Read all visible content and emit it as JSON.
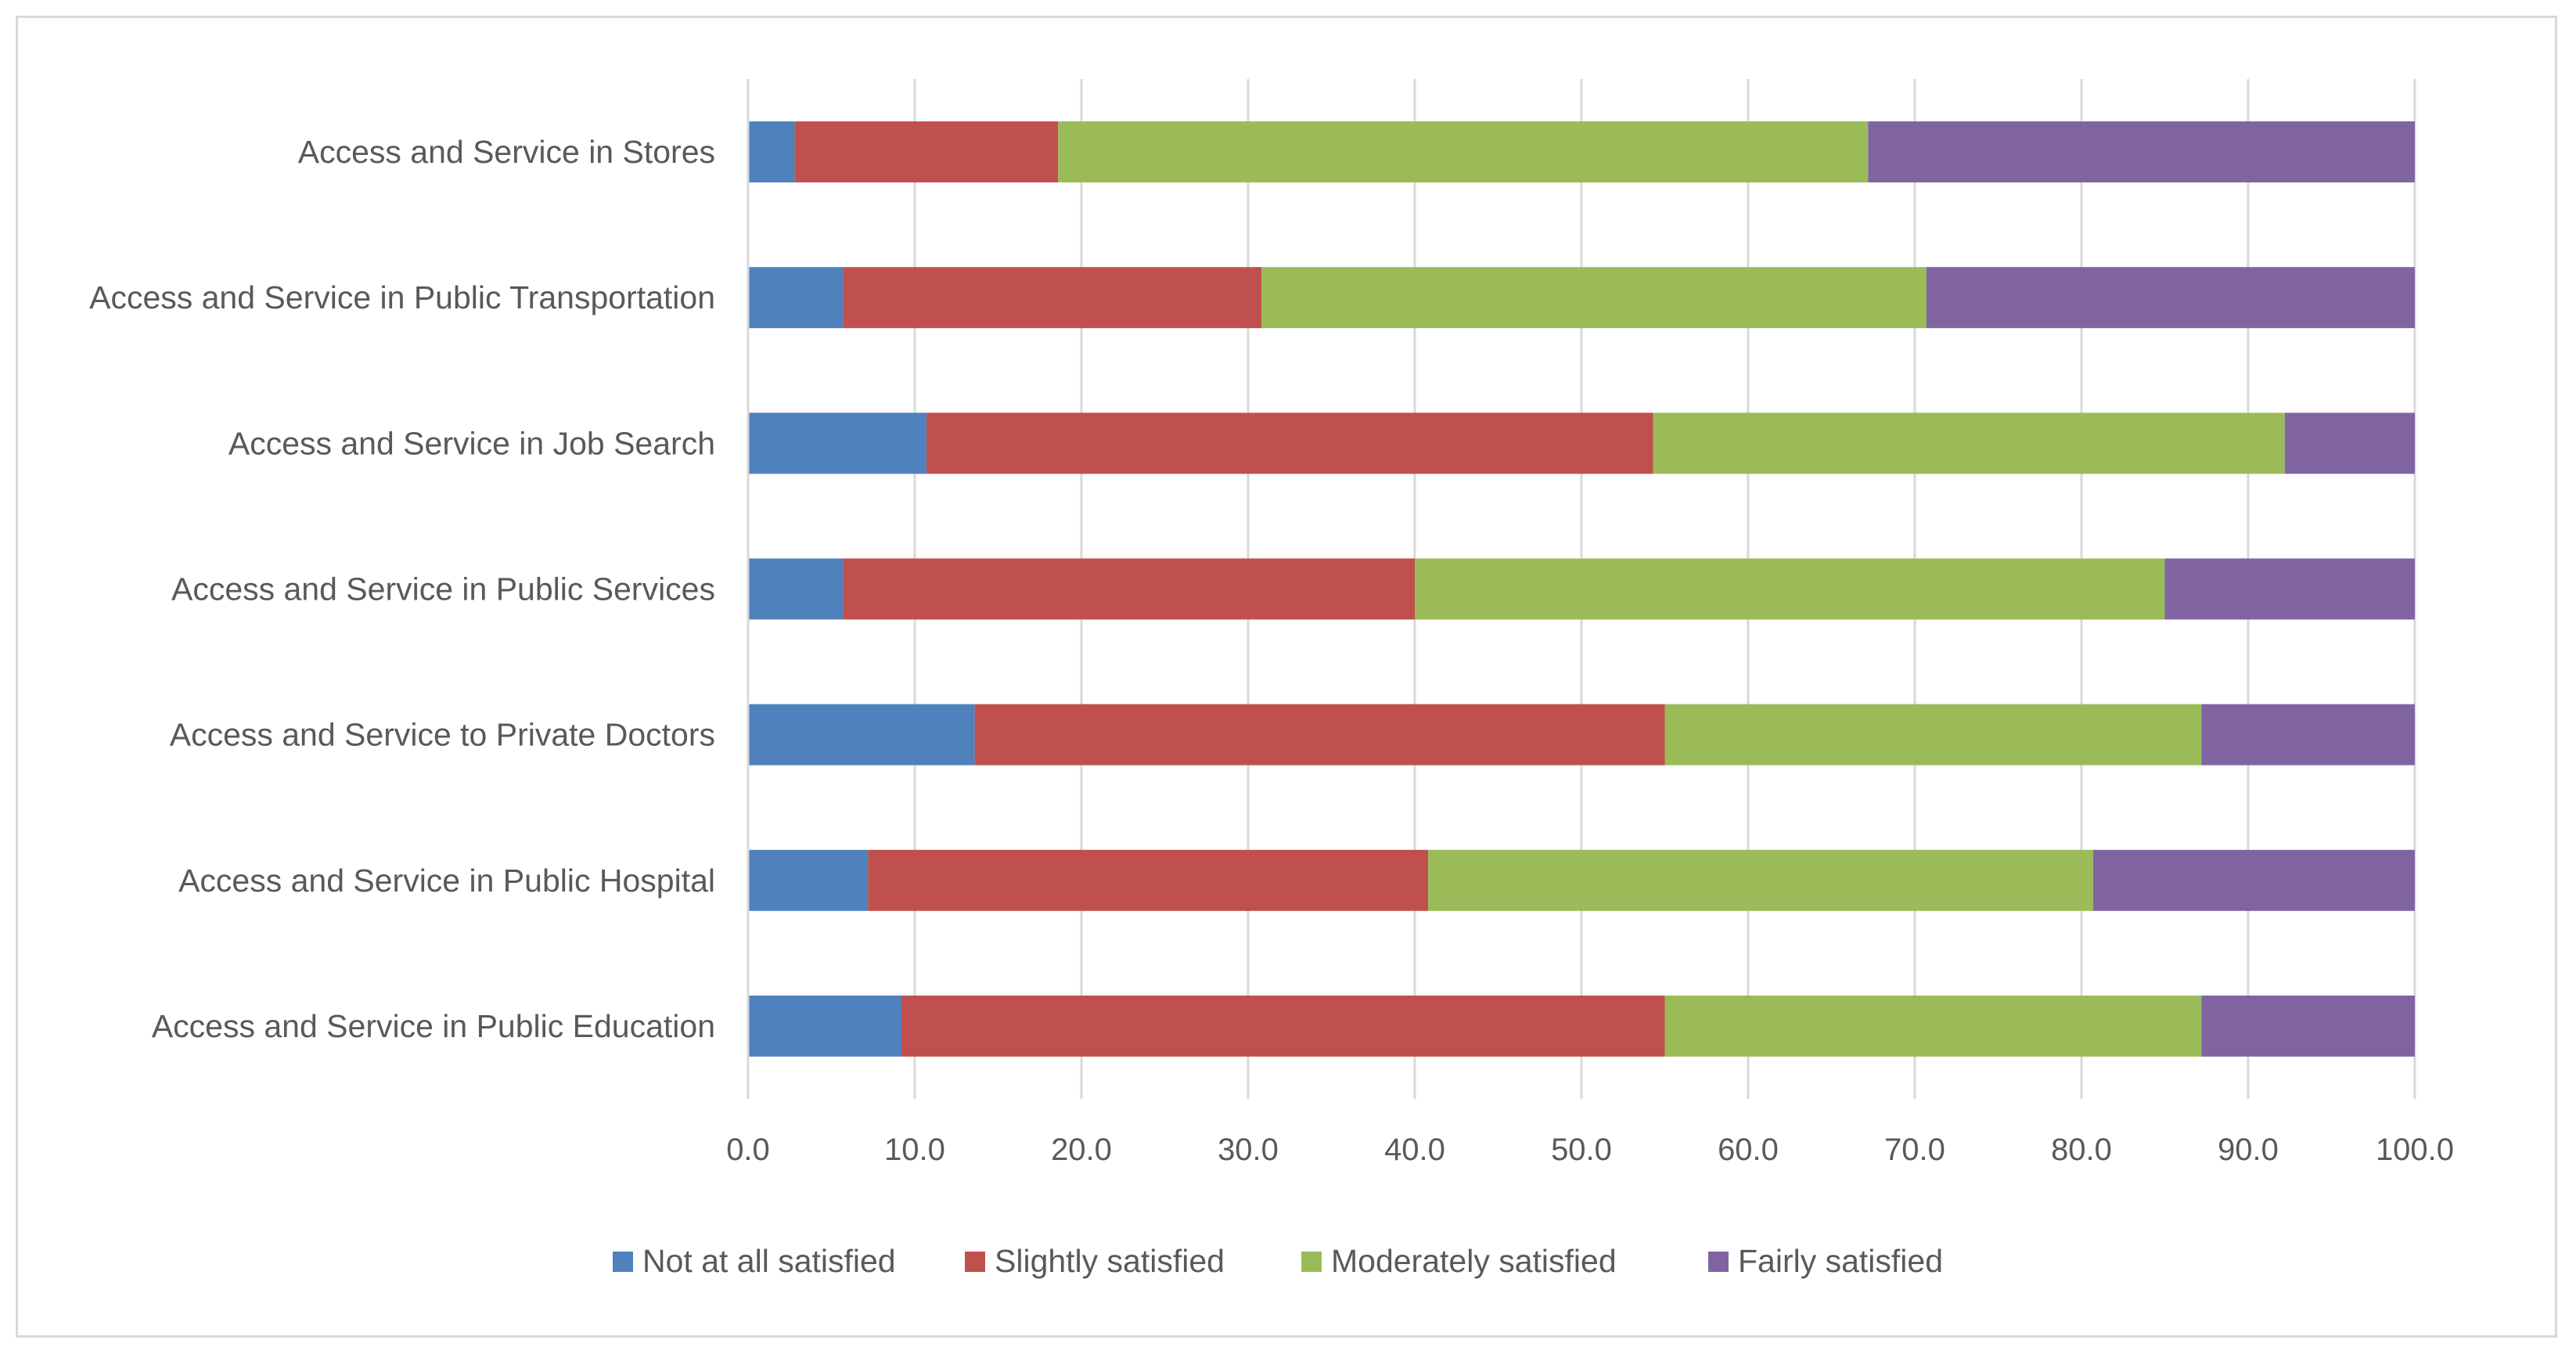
{
  "chart_data": {
    "type": "bar",
    "orientation": "horizontal",
    "stacked": true,
    "categories": [
      "Access and Service in Stores",
      "Access and Service in Public Transportation",
      "Access and Service in Job Search",
      "Access and Service in Public Services",
      "Access and Service to Private Doctors",
      "Access and Service in Public Hospital",
      "Access and Service in Public Education"
    ],
    "series": [
      {
        "name": "Not at all satisfied",
        "color": "#4f81bd",
        "values": [
          2.8,
          5.7,
          10.7,
          5.7,
          13.6,
          7.2,
          9.2
        ]
      },
      {
        "name": "Slightly satisfied",
        "color": "#c0504d",
        "values": [
          15.8,
          25.1,
          43.6,
          34.3,
          41.4,
          33.6,
          45.8
        ]
      },
      {
        "name": "Moderately satisfied",
        "color": "#9bbb59",
        "values": [
          48.6,
          39.9,
          37.9,
          45.0,
          32.2,
          39.9,
          32.2
        ]
      },
      {
        "name": "Fairly satisfied",
        "color": "#8064a2",
        "values": [
          32.8,
          29.3,
          7.8,
          15.0,
          12.8,
          19.3,
          12.8
        ]
      }
    ],
    "xlim": [
      0,
      100
    ],
    "xticks": [
      "0.0",
      "10.0",
      "20.0",
      "30.0",
      "40.0",
      "50.0",
      "60.0",
      "70.0",
      "80.0",
      "90.0",
      "100.0"
    ],
    "grid": "vertical",
    "legend": "bottom"
  }
}
